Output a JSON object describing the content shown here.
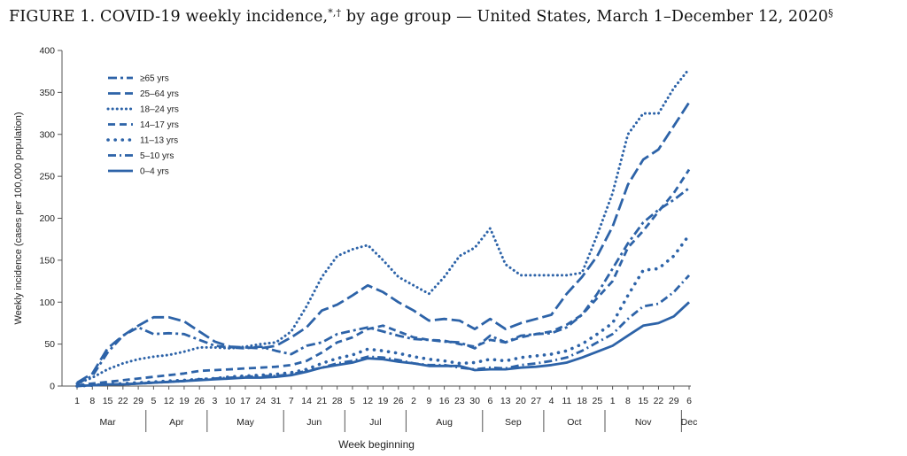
{
  "figure": {
    "title": "FIGURE 1. COVID-19 weekly incidence,",
    "title_marks": "*,†",
    "title_rest": " by age group — United States, March 1–December 12, 2020",
    "title_end_mark": "§"
  },
  "chart_data": {
    "type": "line",
    "xlabel": "Week beginning",
    "ylabel": "Weekly incidence (cases per 100,000 population)",
    "ylim": [
      0,
      400
    ],
    "yticks": [
      0,
      50,
      100,
      150,
      200,
      250,
      300,
      350,
      400
    ],
    "x": [
      "1",
      "8",
      "15",
      "22",
      "29",
      "5",
      "12",
      "19",
      "26",
      "3",
      "10",
      "17",
      "24",
      "31",
      "7",
      "14",
      "21",
      "28",
      "5",
      "12",
      "19",
      "26",
      "2",
      "9",
      "16",
      "23",
      "30",
      "6",
      "13",
      "20",
      "27",
      "4",
      "11",
      "18",
      "25",
      "1",
      "8",
      "15",
      "22",
      "29",
      "6"
    ],
    "months": [
      {
        "label": "Mar",
        "start": 0,
        "end": 4
      },
      {
        "label": "Apr",
        "start": 5,
        "end": 8
      },
      {
        "label": "May",
        "start": 9,
        "end": 13
      },
      {
        "label": "Jun",
        "start": 14,
        "end": 17
      },
      {
        "label": "Jul",
        "start": 18,
        "end": 21
      },
      {
        "label": "Aug",
        "start": 22,
        "end": 26
      },
      {
        "label": "Sep",
        "start": 27,
        "end": 30
      },
      {
        "label": "Oct",
        "start": 31,
        "end": 34
      },
      {
        "label": "Nov",
        "start": 35,
        "end": 39
      },
      {
        "label": "Dec",
        "start": 40,
        "end": 40
      }
    ],
    "legend_position": "top-left",
    "series": [
      {
        "name": "≥65 yrs",
        "style": "dashdot",
        "values": [
          3,
          12,
          40,
          60,
          70,
          62,
          63,
          62,
          55,
          48,
          46,
          45,
          47,
          42,
          38,
          48,
          52,
          62,
          66,
          70,
          65,
          60,
          56,
          55,
          53,
          52,
          45,
          60,
          52,
          60,
          62,
          63,
          70,
          85,
          110,
          140,
          170,
          195,
          210,
          222,
          236
        ]
      },
      {
        "name": "25–64 yrs",
        "style": "longdash",
        "values": [
          4,
          15,
          45,
          60,
          72,
          82,
          82,
          77,
          65,
          53,
          47,
          46,
          45,
          48,
          58,
          70,
          90,
          97,
          108,
          120,
          112,
          100,
          90,
          78,
          80,
          78,
          68,
          80,
          68,
          75,
          80,
          85,
          110,
          130,
          155,
          190,
          240,
          270,
          282,
          310,
          338
        ]
      },
      {
        "name": "18–24 yrs",
        "style": "dotted",
        "values": [
          3,
          10,
          20,
          27,
          32,
          35,
          37,
          41,
          46,
          46,
          45,
          47,
          50,
          52,
          65,
          95,
          130,
          155,
          163,
          168,
          150,
          130,
          120,
          110,
          130,
          155,
          165,
          188,
          145,
          132,
          132,
          132,
          132,
          135,
          180,
          230,
          300,
          325,
          325,
          355,
          378
        ]
      },
      {
        "name": "14–17 yrs",
        "style": "dashed",
        "values": [
          1,
          3,
          5,
          7,
          9,
          11,
          13,
          15,
          18,
          19,
          20,
          21,
          22,
          23,
          25,
          30,
          40,
          52,
          58,
          68,
          72,
          65,
          58,
          55,
          54,
          50,
          47,
          55,
          52,
          58,
          62,
          65,
          73,
          85,
          105,
          125,
          165,
          185,
          208,
          230,
          258
        ]
      },
      {
        "name": "11–13 yrs",
        "style": "sparsedot",
        "values": [
          0,
          1,
          2,
          3,
          4,
          5,
          6,
          7,
          8,
          9,
          11,
          12,
          13,
          14,
          16,
          20,
          27,
          33,
          37,
          44,
          42,
          39,
          35,
          32,
          30,
          27,
          28,
          32,
          30,
          34,
          36,
          38,
          42,
          50,
          62,
          75,
          108,
          138,
          140,
          155,
          180
        ]
      },
      {
        "name": "5–10 yrs",
        "style": "dashdot2",
        "values": [
          0,
          1,
          2,
          2,
          3,
          4,
          5,
          6,
          8,
          9,
          10,
          11,
          12,
          12,
          14,
          18,
          22,
          27,
          30,
          35,
          34,
          31,
          27,
          25,
          25,
          22,
          20,
          22,
          21,
          25,
          27,
          30,
          34,
          42,
          52,
          62,
          80,
          95,
          98,
          112,
          132
        ]
      },
      {
        "name": "0–4 yrs",
        "style": "solid",
        "values": [
          0,
          1,
          2,
          2,
          3,
          4,
          5,
          6,
          7,
          8,
          9,
          10,
          10,
          11,
          13,
          17,
          22,
          25,
          28,
          33,
          32,
          29,
          27,
          24,
          24,
          24,
          19,
          20,
          20,
          22,
          23,
          25,
          28,
          34,
          41,
          48,
          60,
          72,
          75,
          83,
          100
        ]
      }
    ]
  },
  "colors": {
    "line": "#2d63a8",
    "axis": "#555555",
    "text": "#222222"
  }
}
